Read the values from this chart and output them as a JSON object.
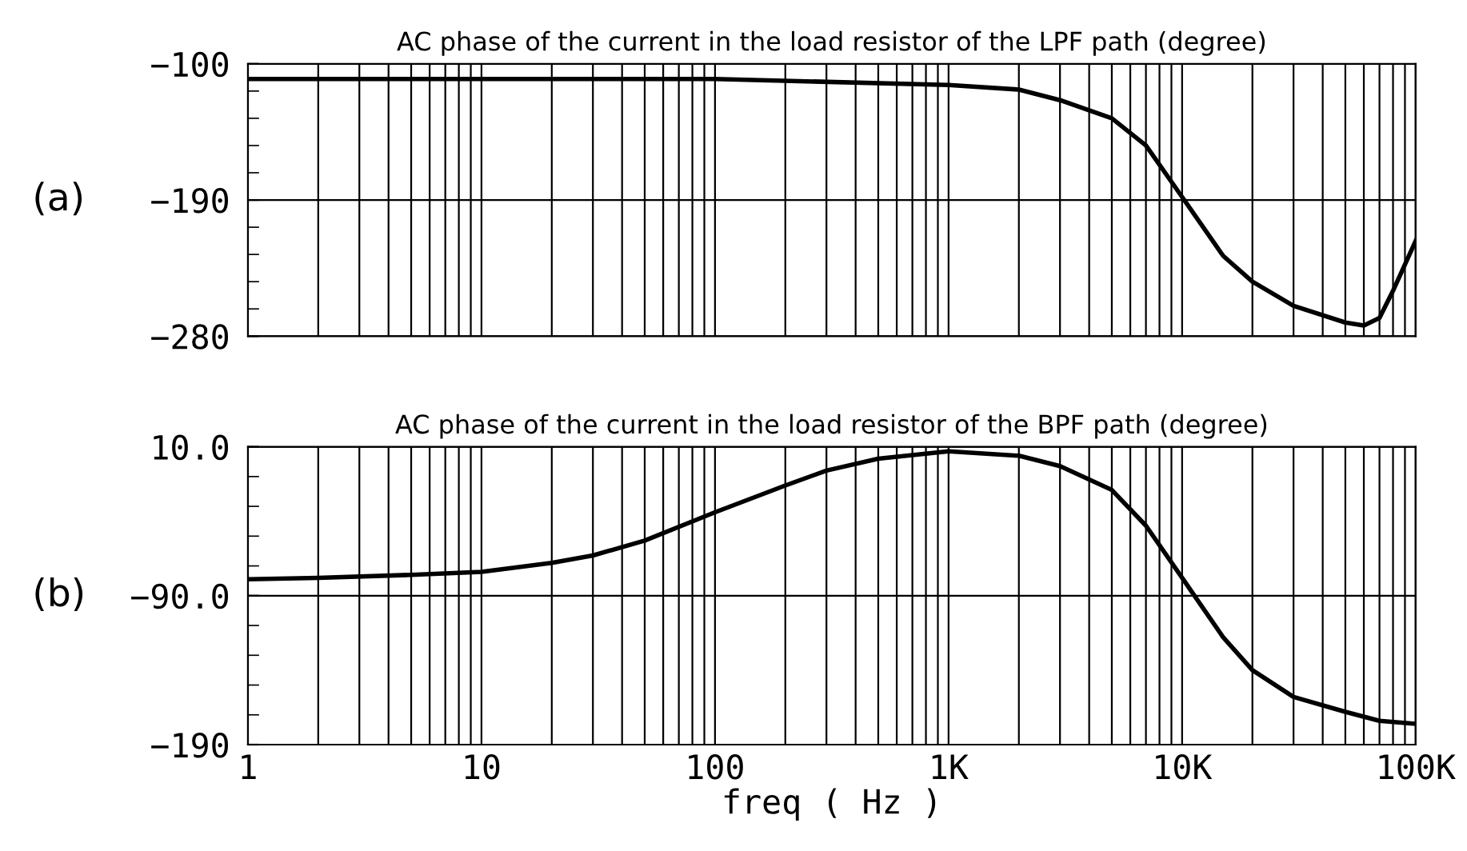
{
  "chart_data": [
    {
      "type": "line",
      "title": "AC phase of the current in the load resistor of the LPF path (degree)",
      "annotations": [
        "(a)"
      ],
      "log": "x",
      "grid": true,
      "tick_labels": "y",
      "line_style": "solid",
      "marker": "none",
      "xlim": [
        1,
        100000
      ],
      "xticks": [
        {
          "value": 1,
          "label": null
        },
        {
          "value": 10,
          "label": null
        },
        {
          "value": 100,
          "label": null
        },
        {
          "value": 1000,
          "label": null
        },
        {
          "value": 10000,
          "label": null
        },
        {
          "value": 100000,
          "label": null
        }
      ],
      "ylim": [
        -280,
        -100
      ],
      "yticks": [
        {
          "value": -100,
          "label": "−100"
        },
        {
          "value": -190,
          "label": "−190"
        },
        {
          "value": -280,
          "label": "−280"
        }
      ],
      "x": [
        1,
        100,
        1000,
        2000,
        3000,
        5000,
        7000,
        10000,
        15000,
        20000,
        30000,
        50000,
        60000,
        70000,
        80000,
        100000
      ],
      "series": [
        {
          "color": "#000000",
          "values": [
            -110,
            -110,
            -114,
            -117,
            -124,
            -136,
            -154,
            -188,
            -227,
            -244,
            -260,
            -271,
            -273,
            -268,
            -250,
            -217
          ]
        }
      ]
    },
    {
      "type": "line",
      "title": "AC phase of the current in the load resistor of the BPF path (degree)",
      "annotations": [
        "(b)"
      ],
      "xlabel": "freq ( Hz )",
      "log": "x",
      "grid": true,
      "line_style": "solid",
      "marker": "none",
      "xlim": [
        1,
        100000
      ],
      "xticks": [
        {
          "value": 1,
          "label": "1"
        },
        {
          "value": 10,
          "label": "10"
        },
        {
          "value": 100,
          "label": "100"
        },
        {
          "value": 1000,
          "label": "1K"
        },
        {
          "value": 10000,
          "label": "10K"
        },
        {
          "value": 100000,
          "label": "100K"
        }
      ],
      "ylim": [
        -190,
        10
      ],
      "yticks": [
        {
          "value": 10,
          "label": "10.0"
        },
        {
          "value": -90,
          "label": "−90.0"
        },
        {
          "value": -190,
          "label": "−190"
        }
      ],
      "x": [
        1,
        2,
        5,
        10,
        20,
        30,
        50,
        100,
        200,
        300,
        500,
        1000,
        2000,
        3000,
        5000,
        7000,
        10000,
        15000,
        20000,
        30000,
        50000,
        70000,
        100000
      ],
      "series": [
        {
          "color": "#000000",
          "values": [
            -79,
            -78,
            -76,
            -74,
            -68,
            -63,
            -53,
            -34,
            -16,
            -6,
            2,
            7,
            4,
            -3,
            -19,
            -43,
            -78,
            -118,
            -140,
            -158,
            -168,
            -174,
            -176
          ]
        }
      ]
    }
  ]
}
